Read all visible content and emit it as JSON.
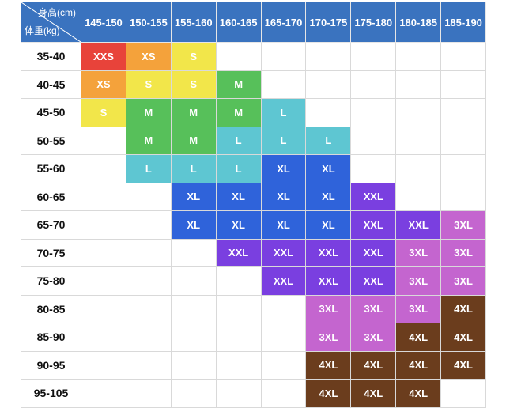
{
  "header": {
    "height_label": "身高(cm)",
    "weight_label": "体重(kg)",
    "columns": [
      "145-150",
      "150-155",
      "155-160",
      "160-165",
      "165-170",
      "170-175",
      "175-180",
      "180-185",
      "185-190"
    ]
  },
  "colors": {
    "header_bg": "#3a73bf",
    "XXS": "#e8433a",
    "XS": "#f4a23b",
    "S": "#f2e64a",
    "M": "#57c05a",
    "L": "#5ec6d2",
    "XL": "#2f63da",
    "XXL": "#7a3fe0",
    "3XL": "#c465cf",
    "4XL": "#6b3d1d"
  },
  "rows": [
    {
      "weight": "35-40",
      "cells": [
        "XXS",
        "XS",
        "S",
        "",
        "",
        "",
        "",
        "",
        ""
      ]
    },
    {
      "weight": "40-45",
      "cells": [
        "XS",
        "S",
        "S",
        "M",
        "",
        "",
        "",
        "",
        ""
      ]
    },
    {
      "weight": "45-50",
      "cells": [
        "S",
        "M",
        "M",
        "M",
        "L",
        "",
        "",
        "",
        ""
      ]
    },
    {
      "weight": "50-55",
      "cells": [
        "",
        "M",
        "M",
        "L",
        "L",
        "L",
        "",
        "",
        ""
      ]
    },
    {
      "weight": "55-60",
      "cells": [
        "",
        "L",
        "L",
        "L",
        "XL",
        "XL",
        "",
        "",
        ""
      ]
    },
    {
      "weight": "60-65",
      "cells": [
        "",
        "",
        "XL",
        "XL",
        "XL",
        "XL",
        "XXL",
        "",
        ""
      ]
    },
    {
      "weight": "65-70",
      "cells": [
        "",
        "",
        "XL",
        "XL",
        "XL",
        "XL",
        "XXL",
        "XXL",
        "3XL"
      ]
    },
    {
      "weight": "70-75",
      "cells": [
        "",
        "",
        "",
        "XXL",
        "XXL",
        "XXL",
        "XXL",
        "3XL",
        "3XL"
      ]
    },
    {
      "weight": "75-80",
      "cells": [
        "",
        "",
        "",
        "",
        "XXL",
        "XXL",
        "XXL",
        "3XL",
        "3XL"
      ]
    },
    {
      "weight": "80-85",
      "cells": [
        "",
        "",
        "",
        "",
        "",
        "3XL",
        "3XL",
        "3XL",
        "4XL"
      ]
    },
    {
      "weight": "85-90",
      "cells": [
        "",
        "",
        "",
        "",
        "",
        "3XL",
        "3XL",
        "4XL",
        "4XL"
      ]
    },
    {
      "weight": "90-95",
      "cells": [
        "",
        "",
        "",
        "",
        "",
        "4XL",
        "4XL",
        "4XL",
        "4XL"
      ]
    },
    {
      "weight": "95-105",
      "cells": [
        "",
        "",
        "",
        "",
        "",
        "4XL",
        "4XL",
        "4XL",
        ""
      ]
    }
  ]
}
